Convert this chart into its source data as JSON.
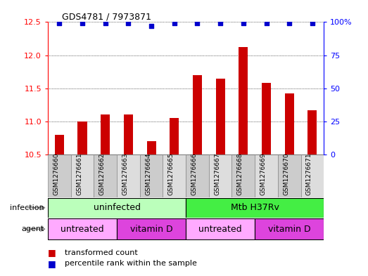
{
  "title": "GDS4781 / 7973871",
  "samples": [
    "GSM1276660",
    "GSM1276661",
    "GSM1276662",
    "GSM1276663",
    "GSM1276664",
    "GSM1276665",
    "GSM1276666",
    "GSM1276667",
    "GSM1276668",
    "GSM1276669",
    "GSM1276670",
    "GSM1276671"
  ],
  "transformed_counts": [
    10.8,
    11.0,
    11.1,
    11.1,
    10.7,
    11.05,
    11.7,
    11.65,
    12.12,
    11.58,
    11.42,
    11.17
  ],
  "percentile_ranks": [
    99,
    99,
    99,
    99,
    97,
    99,
    99,
    99,
    99,
    99,
    99,
    99
  ],
  "ylim": [
    10.5,
    12.5
  ],
  "y2lim": [
    0,
    100
  ],
  "y_ticks": [
    10.5,
    11.0,
    11.5,
    12.0,
    12.5
  ],
  "y2_ticks": [
    0,
    25,
    50,
    75,
    100
  ],
  "bar_color": "#cc0000",
  "dot_color": "#0000cc",
  "bar_width": 0.4,
  "sample_col_colors": [
    "#cccccc",
    "#dddddd"
  ],
  "infection_blocks": [
    {
      "label": "uninfected",
      "start": 0,
      "end": 6,
      "color": "#bbffbb"
    },
    {
      "label": "Mtb H37Rv",
      "start": 6,
      "end": 12,
      "color": "#44ee44"
    }
  ],
  "agent_blocks": [
    {
      "label": "untreated",
      "start": 0,
      "end": 3,
      "color": "#ffaaff"
    },
    {
      "label": "vitamin D",
      "start": 3,
      "end": 6,
      "color": "#dd44dd"
    },
    {
      "label": "untreated",
      "start": 6,
      "end": 9,
      "color": "#ffaaff"
    },
    {
      "label": "vitamin D",
      "start": 9,
      "end": 12,
      "color": "#dd44dd"
    }
  ],
  "legend_items": [
    {
      "label": "transformed count",
      "color": "#cc0000"
    },
    {
      "label": "percentile rank within the sample",
      "color": "#0000cc"
    }
  ],
  "left_labels": [
    "infection",
    "agent"
  ],
  "background_color": "#ffffff"
}
